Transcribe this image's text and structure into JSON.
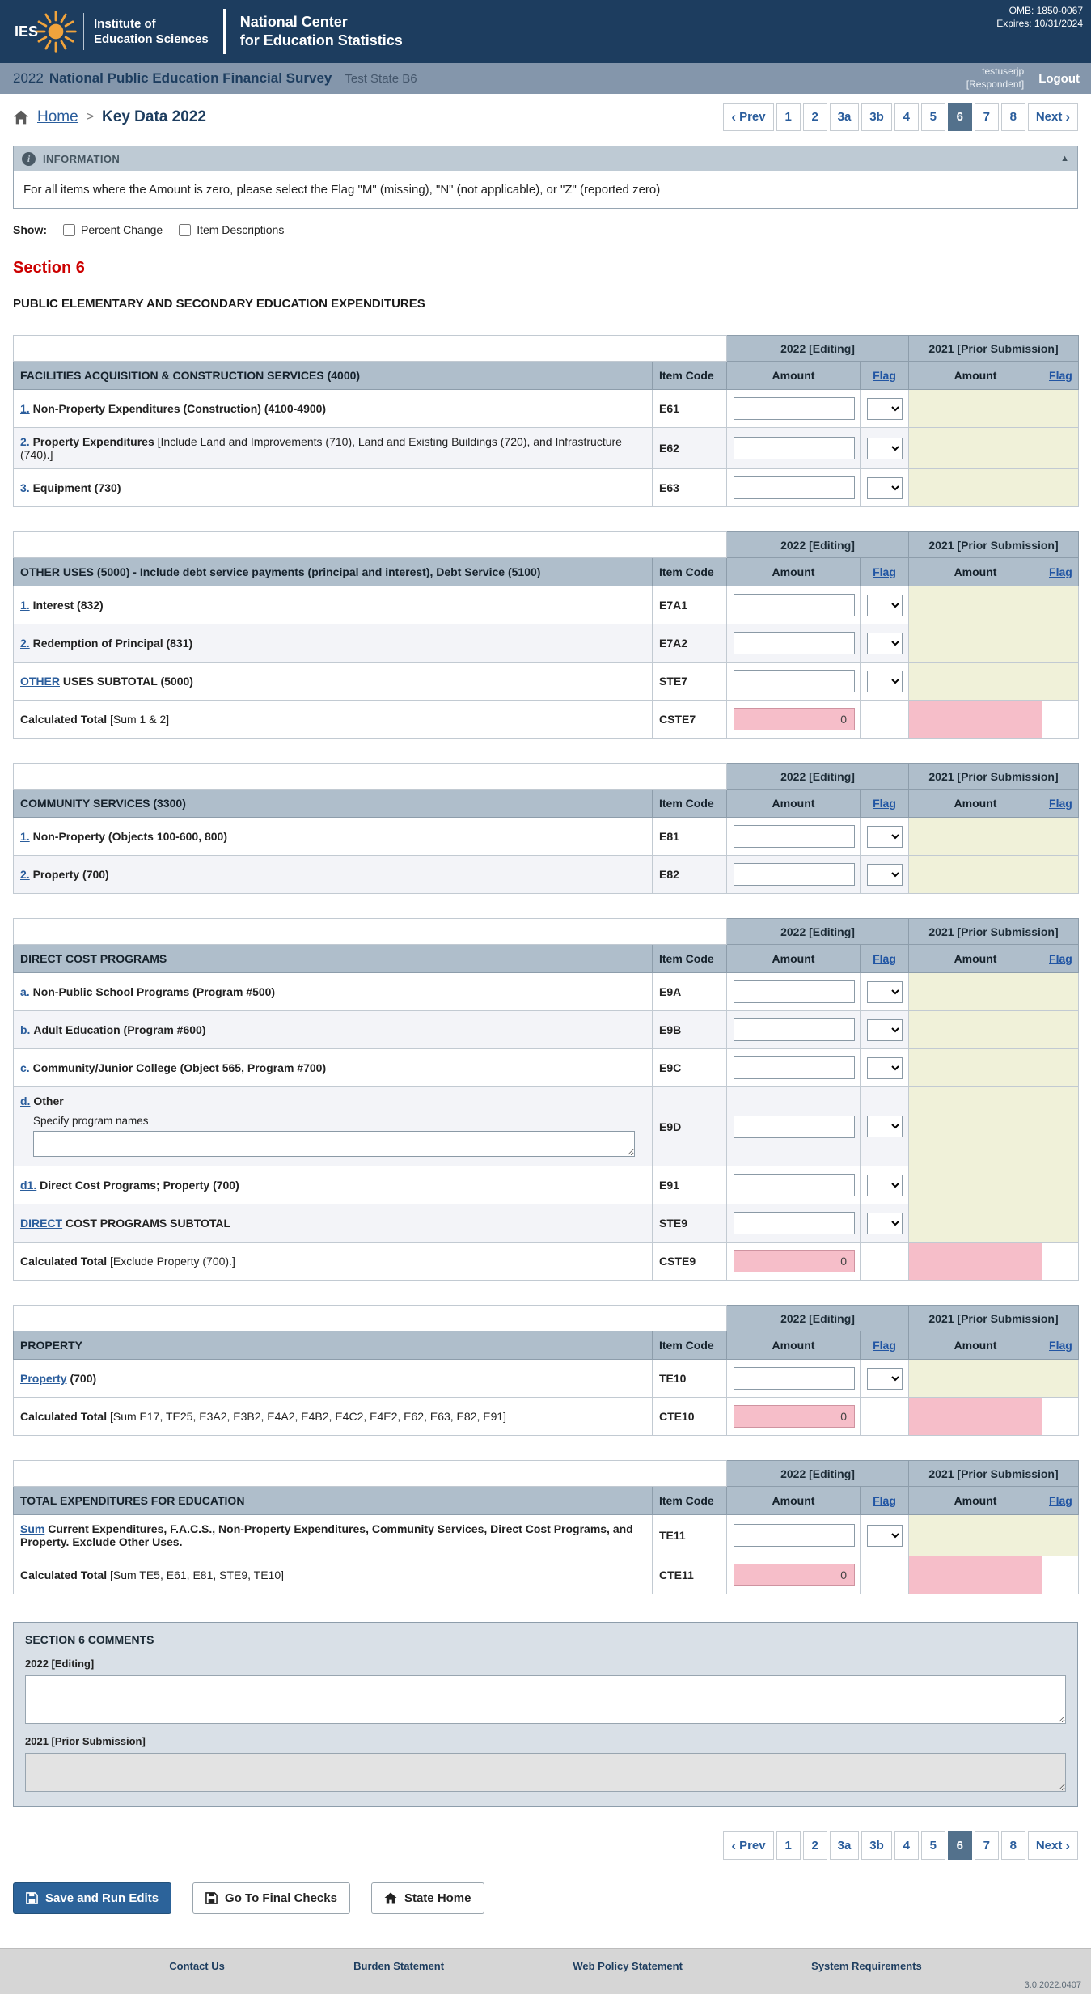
{
  "header": {
    "omb": "OMB: 1850-0067",
    "expires": "Expires: 10/31/2024",
    "logo_ies": "IES",
    "org1_line1": "Institute of",
    "org1_line2": "Education Sciences",
    "org2_line1": "National Center",
    "org2_line2": "for Education Statistics"
  },
  "titlebar": {
    "year": "2022",
    "survey": "National Public Education Financial Survey",
    "state": "Test State B6",
    "user": "testuserjp",
    "role": "[Respondent]",
    "logout": "Logout"
  },
  "breadcrumb": {
    "home": "Home",
    "sep": ">",
    "current": "Key Data 2022"
  },
  "pagination": {
    "prev": "Prev",
    "next": "Next",
    "prev_icon": "‹",
    "next_icon": "›",
    "pages": [
      "1",
      "2",
      "3a",
      "3b",
      "4",
      "5",
      "6",
      "7",
      "8"
    ],
    "active": "6"
  },
  "info_panel": {
    "icon": "i",
    "title": "INFORMATION",
    "collapse_icon": "▲",
    "message": "For all items where the Amount is zero, please select the Flag \"M\" (missing), \"N\" (not applicable), or \"Z\" (reported zero)"
  },
  "show_options": {
    "label": "Show:",
    "options": [
      "Percent Change",
      "Item Descriptions"
    ]
  },
  "section": {
    "title": "Section 6",
    "heading": "PUBLIC ELEMENTARY AND SECONDARY EDUCATION EXPENDITURES"
  },
  "column_headers": {
    "col2022": "2022 [Editing]",
    "col2021": "2021 [Prior Submission]",
    "item_code": "Item Code",
    "amount": "Amount",
    "flag": "Flag"
  },
  "tables": [
    {
      "title": "FACILITIES ACQUISITION & CONSTRUCTION SERVICES (4000)",
      "rows": [
        {
          "kind": "input",
          "link": "1.",
          "bold": "Non-Property Expenditures (Construction) (4100-4900)",
          "note": "",
          "code": "E61"
        },
        {
          "kind": "input",
          "link": "2.",
          "bold": "Property Expenditures",
          "note": "[Include Land and Improvements (710), Land and Existing Buildings (720), and Infrastructure (740).]",
          "code": "E62"
        },
        {
          "kind": "input",
          "link": "3.",
          "bold": "Equipment (730)",
          "note": "",
          "code": "E63"
        }
      ]
    },
    {
      "title": "OTHER USES (5000) - Include debt service payments (principal and interest), Debt Service (5100)",
      "rows": [
        {
          "kind": "input",
          "link": "1.",
          "bold": "Interest (832)",
          "note": "",
          "code": "E7A1"
        },
        {
          "kind": "input",
          "link": "2.",
          "bold": "Redemption of Principal (831)",
          "note": "",
          "code": "E7A2"
        },
        {
          "kind": "input",
          "link": "OTHER",
          "bold": "USES SUBTOTAL (5000)",
          "note": "",
          "code": "STE7"
        },
        {
          "kind": "calc",
          "bold": "Calculated Total",
          "note": "[Sum 1 & 2]",
          "code": "CSTE7",
          "value": "0"
        }
      ]
    },
    {
      "title": "COMMUNITY SERVICES (3300)",
      "rows": [
        {
          "kind": "input",
          "link": "1.",
          "bold": "Non-Property (Objects 100-600, 800)",
          "note": "",
          "code": "E81"
        },
        {
          "kind": "input",
          "link": "2.",
          "bold": "Property (700)",
          "note": "",
          "code": "E82"
        }
      ]
    },
    {
      "title": "DIRECT COST PROGRAMS",
      "rows": [
        {
          "kind": "input",
          "link": "a.",
          "bold": "Non-Public School Programs (Program #500)",
          "note": "",
          "code": "E9A"
        },
        {
          "kind": "input",
          "link": "b.",
          "bold": "Adult Education (Program #600)",
          "note": "",
          "code": "E9B"
        },
        {
          "kind": "input",
          "link": "c.",
          "bold": "Community/Junior College (Object 565, Program #700)",
          "note": "",
          "code": "E9C"
        },
        {
          "kind": "input",
          "link": "d.",
          "bold": "Other",
          "note": "",
          "code": "E9D",
          "specify_label": "Specify program names",
          "has_textarea": true
        },
        {
          "kind": "input",
          "link": "d1.",
          "bold": "Direct Cost Programs; Property (700)",
          "note": "",
          "code": "E91"
        },
        {
          "kind": "input",
          "link": "DIRECT",
          "bold": "COST PROGRAMS SUBTOTAL",
          "note": "",
          "code": "STE9"
        },
        {
          "kind": "calc",
          "bold": "Calculated Total",
          "note": "[Exclude Property (700).]",
          "code": "CSTE9",
          "value": "0"
        }
      ]
    },
    {
      "title": "PROPERTY",
      "rows": [
        {
          "kind": "input",
          "link": "Property",
          "bold": "(700)",
          "note": "",
          "code": "TE10"
        },
        {
          "kind": "calc",
          "bold": "Calculated Total",
          "note": "[Sum E17, TE25, E3A2, E3B2, E4A2, E4B2, E4C2, E4E2, E62, E63, E82, E91]",
          "code": "CTE10",
          "value": "0"
        }
      ]
    },
    {
      "title": "TOTAL EXPENDITURES FOR EDUCATION",
      "rows": [
        {
          "kind": "input",
          "link": "Sum",
          "bold": "Current Expenditures, F.A.C.S., Non-Property Expenditures, Community Services, Direct Cost Programs, and Property. Exclude Other Uses.",
          "note": "",
          "code": "TE11"
        },
        {
          "kind": "calc",
          "bold": "Calculated Total",
          "note": "[Sum TE5, E61, E81, STE9, TE10]",
          "code": "CTE11",
          "value": "0"
        }
      ]
    }
  ],
  "comments": {
    "title": "SECTION 6 COMMENTS",
    "label_2022": "2022 [Editing]",
    "label_2021": "2021 [Prior Submission]"
  },
  "actions": {
    "save": "Save and Run Edits",
    "final_checks": "Go To Final Checks",
    "state_home": "State Home"
  },
  "footer": {
    "links": [
      "Contact Us",
      "Burden Statement",
      "Web Policy Statement",
      "System Requirements"
    ],
    "version": "3.0.2022.0407"
  }
}
